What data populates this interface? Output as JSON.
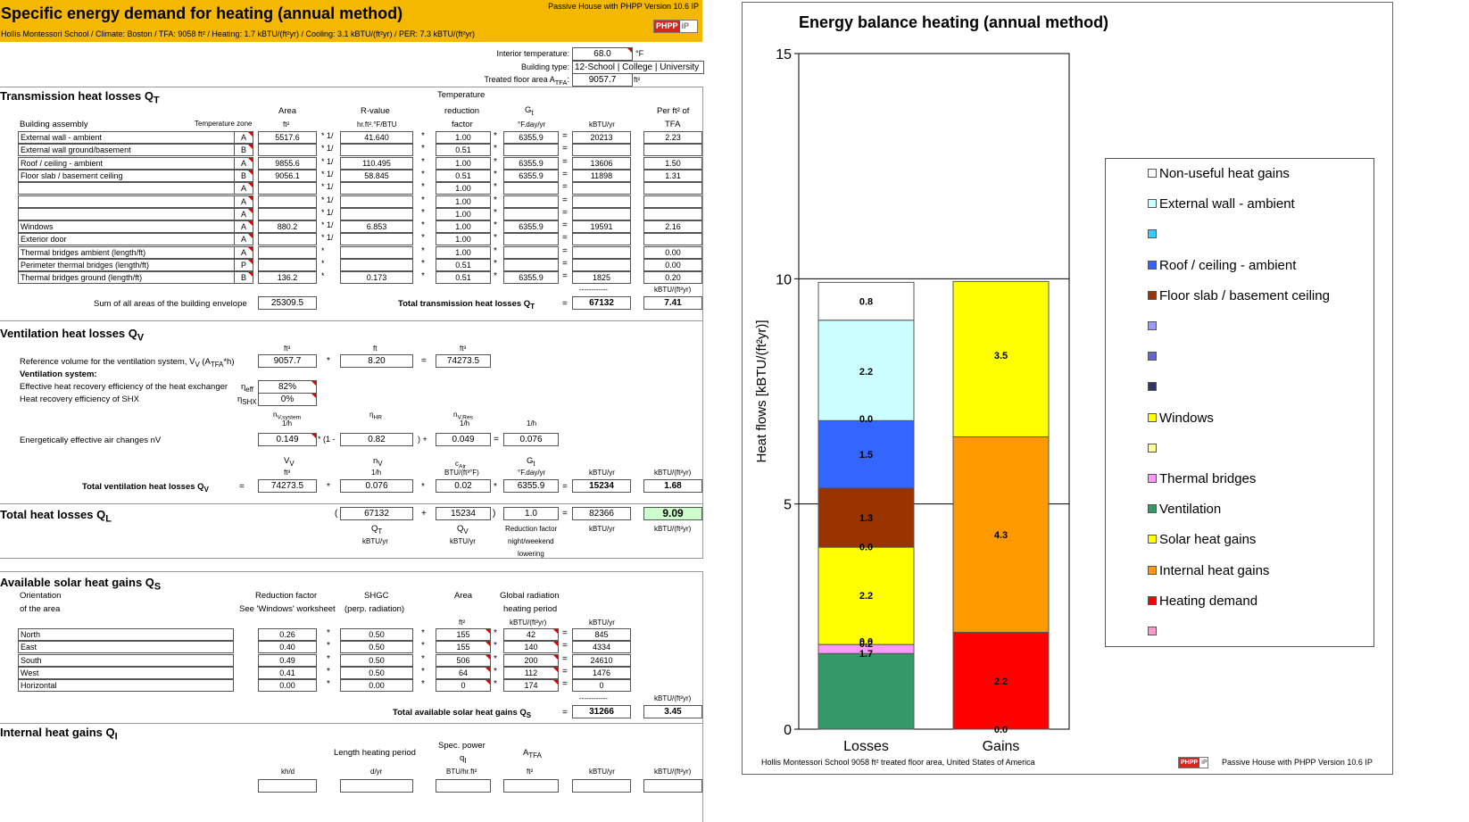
{
  "header": {
    "title": "Specific energy demand for heating (annual method)",
    "version": "Passive House with PHPP Version 10.6 IP",
    "subtitle": "Hollis Montessori School  /  Climate: Boston / TFA: 9058 ft² / Heating: 1.7 kBTU/(ft²yr) / Cooling: 3.1 kBTU/(ft²yr) / PER: 7.3 kBTU/(ft²yr)",
    "logo_left": "PHPP",
    "logo_right": "iP"
  },
  "params": {
    "interior_temp_label": "Interior temperature:",
    "interior_temp_value": "68.0",
    "interior_temp_unit": "°F",
    "building_type_label": "Building type:",
    "building_type_value": "12-School | College | University",
    "tfa_label": "Treated floor area A",
    "tfa_sub": "TFA",
    "tfa_colon": ":",
    "tfa_value": "9057.7",
    "tfa_unit": "ft²"
  },
  "transmission": {
    "title": "Transmission heat losses Q",
    "title_sub": "T",
    "col_building_assembly": "Building assembly",
    "col_temp_zone": "Temperature zone",
    "col_area": "Area",
    "col_area_unit": "ft²",
    "col_rvalue": "R-value",
    "col_rvalue_unit": "hr.ft².°F/BTU",
    "col_temperature": "Temperature",
    "col_reduction": "reduction",
    "col_factor": "factor",
    "col_gt": "G",
    "col_gt_sub": "t",
    "col_gt_unit": "°F.day/yr",
    "col_kbtu": "kBTU/yr",
    "col_perft": "Per ft² of",
    "col_tfa": "TFA",
    "rows": [
      {
        "name": "External wall - ambient",
        "zone": "A",
        "area": "5517.6",
        "op": "* 1/",
        "r": "41.640",
        "f": "1.00",
        "g": "6355.9",
        "q": "20213",
        "p": "2.23"
      },
      {
        "name": "External wall ground/basement",
        "zone": "B",
        "area": "",
        "op": "* 1/",
        "r": "",
        "f": "0.51",
        "g": "",
        "q": "",
        "p": ""
      },
      {
        "name": "Roof / ceiling - ambient",
        "zone": "A",
        "area": "9855.6",
        "op": "* 1/",
        "r": "110.495",
        "f": "1.00",
        "g": "6355.9",
        "q": "13606",
        "p": "1.50"
      },
      {
        "name": "Floor slab / basement ceiling",
        "zone": "B",
        "area": "9056.1",
        "op": "* 1/",
        "r": "58.845",
        "f": "0.51",
        "g": "6355.9",
        "q": "11898",
        "p": "1.31"
      },
      {
        "name": "",
        "zone": "A",
        "area": "",
        "op": "* 1/",
        "r": "",
        "f": "1.00",
        "g": "",
        "q": "",
        "p": ""
      },
      {
        "name": "",
        "zone": "A",
        "area": "",
        "op": "* 1/",
        "r": "",
        "f": "1.00",
        "g": "",
        "q": "",
        "p": ""
      },
      {
        "name": "",
        "zone": "A",
        "area": "",
        "op": "* 1/",
        "r": "",
        "f": "1.00",
        "g": "",
        "q": "",
        "p": ""
      },
      {
        "name": "Windows",
        "zone": "A",
        "area": "880.2",
        "op": "* 1/",
        "r": "6.853",
        "f": "1.00",
        "g": "6355.9",
        "q": "19591",
        "p": "2.16"
      },
      {
        "name": "Exterior door",
        "zone": "A",
        "area": "",
        "op": "* 1/",
        "r": "",
        "f": "1.00",
        "g": "",
        "q": "",
        "p": ""
      },
      {
        "name": "Thermal bridges ambient (length/ft)",
        "zone": "A",
        "area": "",
        "op": "*",
        "r": "",
        "f": "1.00",
        "g": "",
        "q": "",
        "p": "0.00"
      },
      {
        "name": "Perimeter thermal bridges (length/ft)",
        "zone": "P",
        "area": "",
        "op": "*",
        "r": "",
        "f": "0.51",
        "g": "",
        "q": "",
        "p": "0.00"
      },
      {
        "name": "Thermal bridges ground (length/ft)",
        "zone": "B",
        "area": "136.2",
        "op": "*",
        "r": "0.173",
        "f": "0.51",
        "g": "6355.9",
        "q": "1825",
        "p": "0.20"
      }
    ],
    "dashes": "------------",
    "unit_per_ft": "kBTU/(ft²yr)",
    "sum_label": "Sum of all areas of the building envelope",
    "sum_value": "25309.5",
    "total_label": "Total transmission heat losses Q",
    "total_sub": "T",
    "total_value": "67132",
    "total_per": "7.41"
  },
  "ventilation": {
    "title": "Ventilation heat losses Q",
    "title_sub": "V",
    "unit_ft3": "ft³",
    "unit_ft": "ft",
    "ref_label": "Reference volume for the ventilation system, V",
    "ref_sub": "V",
    "ref_label_tail": " (A",
    "ref_tfa": "TFA",
    "ref_label_end": "*h)",
    "ref_a": "9057.7",
    "ref_h": "8.20",
    "ref_v": "74273.5",
    "system_label": "Ventilation system:",
    "hr_label": "Effective heat recovery efficiency of the heat exchanger",
    "hr_eta": "η",
    "hr_eta_sub": "eff",
    "hr_value": "82%",
    "shx_label": "Heat recovery efficiency of SHX",
    "shx_eta": "η",
    "shx_eta_sub": "SHX",
    "shx_value": "0%",
    "n_system": "n",
    "n_system_sub": "V,system",
    "unit_1h": "1/h",
    "eta_hr": "η",
    "eta_hr_sub": "HR",
    "n_res": "n",
    "n_res_sub": "V,Res",
    "air_label": "Energetically effective air changes nV",
    "air_a": "0.149",
    "air_b": "0.82",
    "air_c": "0.049",
    "air_d": "0.076",
    "op_1minus": "* (1 -",
    "op_close_plus": ") +",
    "col_vv": "V",
    "col_vv_sub": "V",
    "col_nv": "n",
    "col_nv_sub": "V",
    "col_cair": "c",
    "col_cair_sub": "Air",
    "col_cair_unit": "BTU/(ft³°F)",
    "col_gt": "G",
    "col_gt_sub": "t",
    "col_gt_unit": "°F.day/yr",
    "col_kbtu": "kBTU/yr",
    "col_perft": "kBTU/(ft²yr)",
    "total_label": "Total ventilation heat losses Q",
    "total_sub": "V",
    "total_eq": "=",
    "t_v": "74273.5",
    "t_n": "0.076",
    "t_c": "0.02",
    "t_g": "6355.9",
    "t_q": "15234",
    "t_p": "1.68"
  },
  "total_losses": {
    "title": "Total heat losses Q",
    "title_sub": "L",
    "open": "(",
    "qt": "67132",
    "qv": "15234",
    "close": ")",
    "factor": "1.0",
    "q": "82366",
    "p": "9.09",
    "lbl_qt": "Q",
    "lbl_qt_sub": "T",
    "lbl_qv": "Q",
    "lbl_qv_sub": "V",
    "unit_kbtu": "kBTU/yr",
    "red_factor": "Reduction factor",
    "red_factor2": "night/weekend",
    "red_factor3": "lowering",
    "unit_perft": "kBTU/(ft²yr)"
  },
  "solar": {
    "title": "Available solar heat gains Q",
    "title_sub": "S",
    "col_orientation": "Orientation",
    "col_of_area": "of the area",
    "col_reduction": "Reduction factor",
    "col_see": "See 'Windows' worksheet",
    "col_shgc": "SHGC",
    "col_perp": "(perp. radiation)",
    "col_area": "Area",
    "col_area_unit": "ft²",
    "col_global": "Global radiation",
    "col_heating": "heating period",
    "col_global_unit": "kBTU/(ft²yr)",
    "col_kbtu": "kBTU/yr",
    "rows": [
      {
        "o": "North",
        "r": "0.26",
        "s": "0.50",
        "a": "155",
        "g": "42",
        "q": "845"
      },
      {
        "o": "East",
        "r": "0.40",
        "s": "0.50",
        "a": "155",
        "g": "140",
        "q": "4334"
      },
      {
        "o": "South",
        "r": "0.49",
        "s": "0.50",
        "a": "506",
        "g": "200",
        "q": "24610"
      },
      {
        "o": "West",
        "r": "0.41",
        "s": "0.50",
        "a": "64",
        "g": "112",
        "q": "1476"
      },
      {
        "o": "Horizontal",
        "r": "0.00",
        "s": "0.00",
        "a": "0",
        "g": "174",
        "q": "0"
      }
    ],
    "dashes": "------------",
    "unit_perft": "kBTU/(ft²yr)",
    "total_label": "Total available solar heat gains Q",
    "total_sub": "S",
    "total_value": "31266",
    "total_per": "3.45"
  },
  "internal": {
    "title": "Internal heat gains Q",
    "title_sub": "I",
    "col_length": "Length heating period",
    "col_spec": "Spec. power",
    "col_qi": "q",
    "col_qi_sub": "I",
    "col_atfa": "A",
    "col_atfa_sub": "TFA",
    "u1": "kh/d",
    "u2": "d/yr",
    "u3": "BTU/hr.ft²",
    "u4": "ft²",
    "u5": "kBTU/yr",
    "u6": "kBTU/(ft²yr)"
  },
  "ops": {
    "eq": "=",
    "mul": "*",
    "plus": "+",
    "mul1": "* 1/"
  },
  "chart_data": {
    "type": "bar",
    "stacked": true,
    "title": "Energy balance heating (annual method)",
    "ylabel": "Heat flows [kBTU/(ft²yr)]",
    "ylim": [
      0,
      15
    ],
    "yticks": [
      0,
      5,
      10,
      15
    ],
    "categories": [
      "Losses",
      "Gains"
    ],
    "grid": "horizontal major",
    "legend_position": "right",
    "series": [
      {
        "name": "Ventilation",
        "color": "#339966",
        "values": [
          1.68,
          0
        ]
      },
      {
        "name": "Thermal bridges",
        "color": "#ff99ff",
        "values": [
          0.2,
          0
        ]
      },
      {
        "name": "",
        "color": "#ffff99",
        "values": [
          0.0,
          0
        ]
      },
      {
        "name": "Windows",
        "color": "#ffff00",
        "values": [
          2.16,
          0
        ]
      },
      {
        "name": "",
        "color": "#333366",
        "values": [
          0.0,
          0
        ]
      },
      {
        "name": "Floor slab / basement ceiling",
        "color": "#993300",
        "values": [
          1.31,
          0
        ]
      },
      {
        "name": "Roof / ceiling - ambient",
        "color": "#3366ff",
        "values": [
          1.5,
          0
        ]
      },
      {
        "name": "",
        "color": "#33ccff",
        "values": [
          0.0,
          0
        ]
      },
      {
        "name": "External wall - ambient",
        "color": "#ccffff",
        "values": [
          2.23,
          0
        ]
      },
      {
        "name": "Non-useful heat gains",
        "color": "#ffffff",
        "values": [
          0.84,
          0
        ]
      },
      {
        "name": "Heating demand",
        "color": "#ff0000",
        "values": [
          0,
          2.15
        ]
      },
      {
        "name": "Internal heat gains",
        "color": "#ff9900",
        "values": [
          0,
          4.34
        ]
      },
      {
        "name": "Solar heat gains",
        "color": "#ffff00",
        "values": [
          0,
          3.45
        ]
      }
    ],
    "bar_labels": [
      {
        "cat": 0,
        "y": 1.68,
        "text": "1.7"
      },
      {
        "cat": 0,
        "y": 1.9,
        "text": "0.2"
      },
      {
        "cat": 0,
        "y": 1.95,
        "text": "0.0"
      },
      {
        "cat": 0,
        "y": 2.97,
        "text": "2.2"
      },
      {
        "cat": 0,
        "y": 4.05,
        "text": "0.0"
      },
      {
        "cat": 0,
        "y": 4.7,
        "text": "1.3"
      },
      {
        "cat": 0,
        "y": 6.1,
        "text": "1.5"
      },
      {
        "cat": 0,
        "y": 6.9,
        "text": "0.0"
      },
      {
        "cat": 0,
        "y": 7.95,
        "text": "2.2"
      },
      {
        "cat": 0,
        "y": 9.5,
        "text": "0.8"
      },
      {
        "cat": 1,
        "y": 1.07,
        "text": "2.2"
      },
      {
        "cat": 1,
        "y": 4.32,
        "text": "4.3"
      },
      {
        "cat": 1,
        "y": 8.3,
        "text": "3.5"
      },
      {
        "cat": 1,
        "y": 0,
        "text": "0.0"
      }
    ],
    "legend": [
      {
        "label": "Non-useful heat gains",
        "color": "#ffffff"
      },
      {
        "label": "External wall - ambient",
        "color": "#ccffff"
      },
      {
        "label": "",
        "color": "#33ccff"
      },
      {
        "label": "Roof / ceiling - ambient",
        "color": "#3366ff"
      },
      {
        "label": "Floor slab / basement ceiling",
        "color": "#993300"
      },
      {
        "label": "",
        "color": "#9999ff"
      },
      {
        "label": "",
        "color": "#6666cc"
      },
      {
        "label": "",
        "color": "#333366"
      },
      {
        "label": "Windows",
        "color": "#ffff00"
      },
      {
        "label": "",
        "color": "#ffff99"
      },
      {
        "label": "Thermal bridges",
        "color": "#ff99ff"
      },
      {
        "label": "Ventilation",
        "color": "#339966"
      },
      {
        "label": "Solar heat gains",
        "color": "#ffff00"
      },
      {
        "label": "Internal heat gains",
        "color": "#ff9900"
      },
      {
        "label": "Heating demand",
        "color": "#ff0000"
      },
      {
        "label": "",
        "color": "#ff99cc"
      }
    ],
    "footer_left": "Hollis Montessori School     9058 ft² treated floor area, United States of America",
    "footer_right": "Passive House with PHPP Version 10.6 IP",
    "footer_logo_left": "PHPP",
    "footer_logo_right": "iP"
  }
}
